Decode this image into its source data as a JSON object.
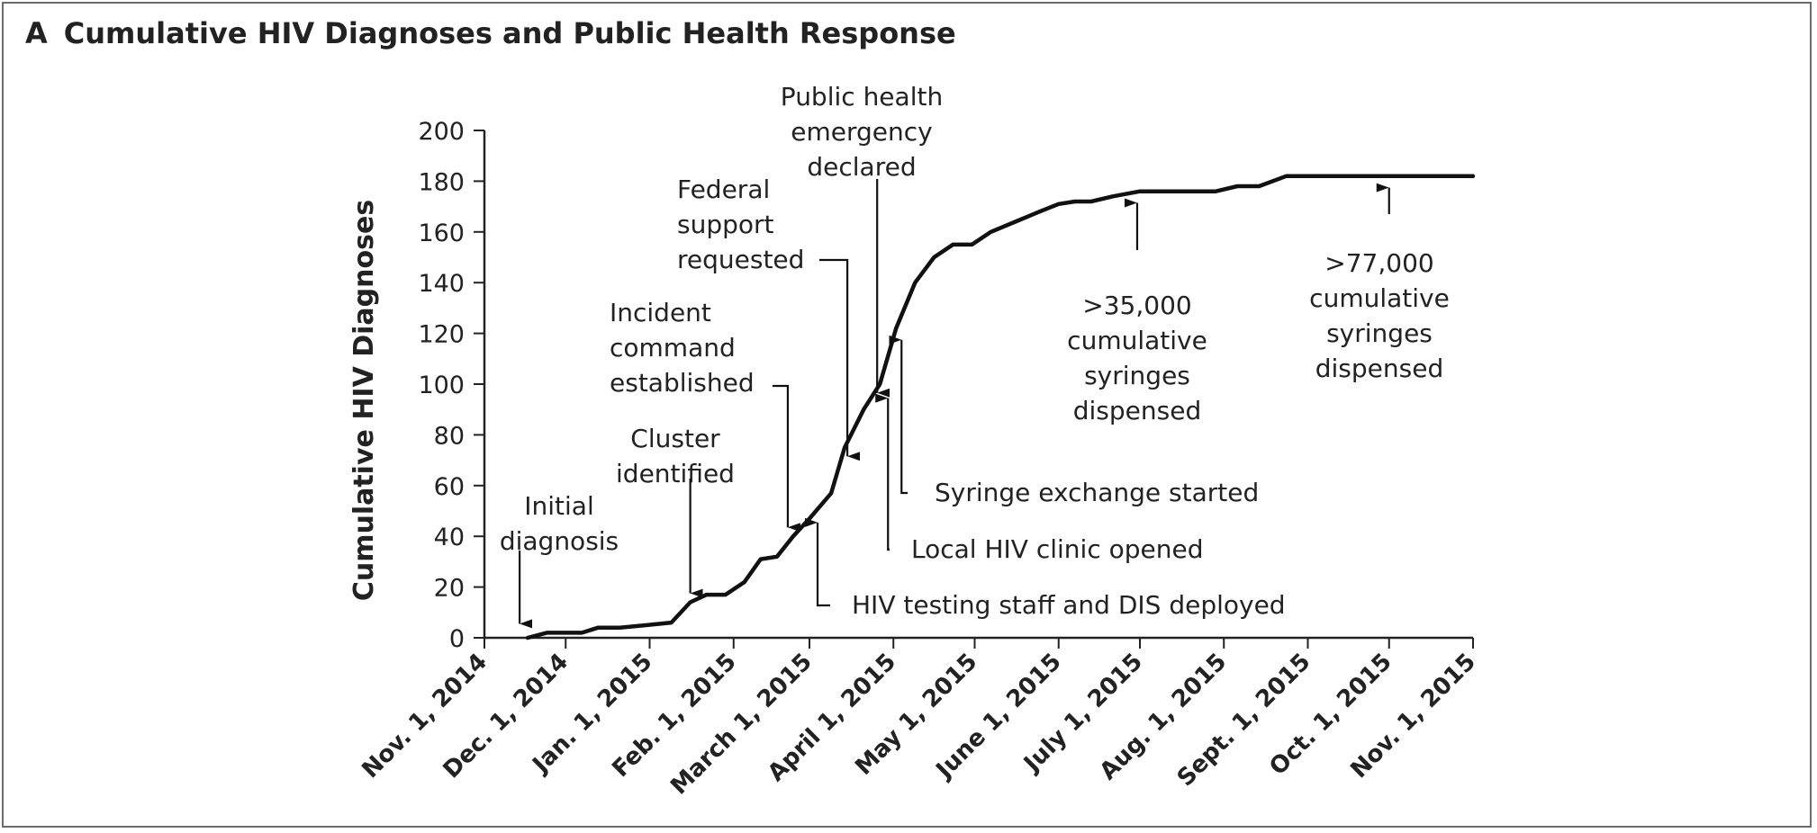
{
  "panel": {
    "letter": "A",
    "title": "Cumulative HIV Diagnoses and Public Health Response"
  },
  "chart_data": {
    "type": "line",
    "ylabel": "Cumulative HIV Diagnoses",
    "xlabel": "",
    "ylim": [
      0,
      200
    ],
    "yticks": [
      0,
      20,
      40,
      60,
      80,
      100,
      120,
      140,
      160,
      180,
      200
    ],
    "xlim": [
      "2014-11-01",
      "2015-11-01"
    ],
    "xticks": [
      {
        "date": "2014-11-01",
        "label": "Nov. 1, 2014"
      },
      {
        "date": "2014-12-01",
        "label": "Dec. 1, 2014"
      },
      {
        "date": "2015-01-01",
        "label": "Jan. 1, 2015"
      },
      {
        "date": "2015-02-01",
        "label": "Feb. 1, 2015"
      },
      {
        "date": "2015-03-01",
        "label": "March 1, 2015"
      },
      {
        "date": "2015-04-01",
        "label": "April 1, 2015"
      },
      {
        "date": "2015-05-01",
        "label": "May 1, 2015"
      },
      {
        "date": "2015-06-01",
        "label": "June 1, 2015"
      },
      {
        "date": "2015-07-01",
        "label": "July 1, 2015"
      },
      {
        "date": "2015-08-01",
        "label": "Aug. 1, 2015"
      },
      {
        "date": "2015-09-01",
        "label": "Sept. 1, 2015"
      },
      {
        "date": "2015-10-01",
        "label": "Oct. 1, 2015"
      },
      {
        "date": "2015-11-01",
        "label": "Nov. 1, 2015"
      }
    ],
    "series": [
      {
        "points": [
          [
            "2014-11-17",
            0
          ],
          [
            "2014-11-24",
            2
          ],
          [
            "2014-12-07",
            2
          ],
          [
            "2014-12-13",
            4
          ],
          [
            "2014-12-21",
            4
          ],
          [
            "2014-12-31",
            5
          ],
          [
            "2015-01-09",
            6
          ],
          [
            "2015-01-16",
            14
          ],
          [
            "2015-01-22",
            17
          ],
          [
            "2015-01-29",
            17
          ],
          [
            "2015-02-05",
            22
          ],
          [
            "2015-02-11",
            31
          ],
          [
            "2015-02-17",
            32
          ],
          [
            "2015-02-23",
            40
          ],
          [
            "2015-03-01",
            47
          ],
          [
            "2015-03-05",
            52
          ],
          [
            "2015-03-09",
            57
          ],
          [
            "2015-03-14",
            75
          ],
          [
            "2015-03-21",
            90
          ],
          [
            "2015-03-27",
            100
          ],
          [
            "2015-04-02",
            122
          ],
          [
            "2015-04-09",
            140
          ],
          [
            "2015-04-16",
            150
          ],
          [
            "2015-04-23",
            155
          ],
          [
            "2015-04-30",
            155
          ],
          [
            "2015-05-07",
            160
          ],
          [
            "2015-05-16",
            164
          ],
          [
            "2015-05-25",
            168
          ],
          [
            "2015-06-01",
            171
          ],
          [
            "2015-06-07",
            172
          ],
          [
            "2015-06-13",
            172
          ],
          [
            "2015-06-21",
            174
          ],
          [
            "2015-07-01",
            176
          ],
          [
            "2015-07-15",
            176
          ],
          [
            "2015-07-29",
            176
          ],
          [
            "2015-08-06",
            178
          ],
          [
            "2015-08-14",
            178
          ],
          [
            "2015-08-24",
            182
          ],
          [
            "2015-09-05",
            182
          ],
          [
            "2015-10-01",
            182
          ],
          [
            "2015-11-01",
            182
          ]
        ]
      }
    ],
    "annotations": [
      {
        "lines": [
          "Initial",
          "diagnosis"
        ],
        "date": "2014-11-14",
        "y": 2
      },
      {
        "lines": [
          "Cluster",
          "identified"
        ],
        "date": "2015-01-16",
        "y": 14
      },
      {
        "lines": [
          "Incident",
          "command",
          "established"
        ],
        "date": "2015-02-21",
        "y": 40
      },
      {
        "lines": [
          "Federal",
          "support",
          "requested"
        ],
        "date": "2015-03-15",
        "y": 68
      },
      {
        "lines": [
          "Public health",
          "emergency",
          "declared"
        ],
        "date": "2015-03-26",
        "y": 93
      },
      {
        "lines": [
          "HIV testing staff and DIS deployed"
        ],
        "date": "2015-03-04",
        "y": 49
      },
      {
        "lines": [
          "Local HIV clinic opened"
        ],
        "date": "2015-03-30",
        "y": 98
      },
      {
        "lines": [
          "Syringe exchange started"
        ],
        "date": "2015-04-04",
        "y": 121
      },
      {
        "lines": [
          ">35,000",
          "cumulative",
          "syringes",
          "dispensed"
        ],
        "date": "2015-06-30",
        "y": 175
      },
      {
        "lines": [
          ">77,000",
          "cumulative",
          "syringes",
          "dispensed"
        ],
        "date": "2015-10-01",
        "y": 181
      }
    ]
  }
}
